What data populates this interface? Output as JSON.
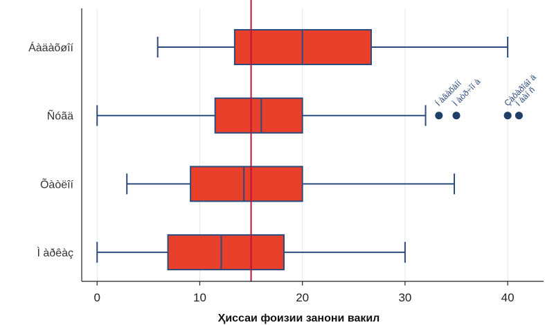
{
  "chart_data": {
    "type": "boxplot",
    "orientation": "horizontal",
    "title": "",
    "xlabel": "Ҳиссаи фоизии занони вакил",
    "ylabel": "",
    "xlim": [
      -1.5,
      43.5
    ],
    "xticks": [
      0,
      10,
      20,
      30,
      40
    ],
    "xtick_labels": [
      "0",
      "10",
      "20",
      "30",
      "40"
    ],
    "grid": true,
    "reference_line": {
      "x": 15,
      "color": "#b5163a"
    },
    "colors": {
      "box_fill": "#e8402a",
      "box_edge": "#2b4b7c",
      "outlier": "#1f3f68",
      "grid": "#e3e8ee",
      "axis": "#222222"
    },
    "categories": [
      "Áàäàõøîí",
      "Ñóãä",
      "Õàòëîí",
      "Ì àðêàç"
    ],
    "boxes": [
      {
        "category": "Áàäàõøîí",
        "min": 5.9,
        "q1": 13.4,
        "median": 20,
        "q3": 26.7,
        "max": 40,
        "outliers": []
      },
      {
        "category": "Ñóãä",
        "min": 0,
        "q1": 11.5,
        "median": 16,
        "q3": 20,
        "max": 32,
        "outliers": [
          {
            "value": 33.3,
            "label": "Í àâàõàîí"
          },
          {
            "value": 35,
            "label": "Ì àòð÷îí à"
          },
          {
            "value": 40,
            "label": "Çàôàðîáî ä"
          },
          {
            "value": 41.1,
            "label": "Ì ààí ñ"
          }
        ]
      },
      {
        "category": "Õàòëîí",
        "min": 2.9,
        "q1": 9.1,
        "median": 14.3,
        "q3": 20,
        "max": 34.8,
        "outliers": []
      },
      {
        "category": "Ì àðêàç",
        "min": 0,
        "q1": 6.9,
        "median": 12.1,
        "q3": 18.2,
        "max": 30,
        "outliers": []
      }
    ]
  }
}
